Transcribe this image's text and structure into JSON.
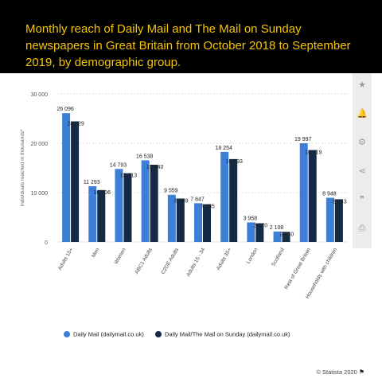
{
  "header": {
    "title": "Monthly reach of Daily Mail and The Mail on Sunday newspapers in Great Britain from October 2018 to September 2019, by demographic group."
  },
  "sidebar": {
    "icons": [
      "star-icon",
      "bell-icon",
      "gear-icon",
      "share-icon",
      "quote-icon",
      "print-icon"
    ],
    "glyphs": [
      "★",
      "🔔",
      "⚙",
      "⋖",
      "❞",
      "⎙"
    ]
  },
  "chart_data": {
    "type": "bar",
    "categories": [
      "Adults 15+",
      "Men",
      "Women",
      "ABC1 Adults",
      "C2DE Adults",
      "Adults 15 - 34",
      "Adults 35+",
      "London",
      "Scotland",
      "Rest of Great Britain",
      "Households with children"
    ],
    "series": [
      {
        "name": "Daily Mail (dailymail.co.uk)",
        "color": "#3d7fd6",
        "values": [
          26096,
          11293,
          14793,
          16538,
          9559,
          7847,
          18254,
          3958,
          2108,
          19997,
          8948
        ],
        "labels": [
          "26 096",
          "11 293",
          "14 793",
          "16 538",
          "9 559",
          "7 847",
          "18 254",
          "3 958",
          "2 108",
          "19 997",
          "8 948"
        ]
      },
      {
        "name": "Daily Mail/The Mail on Sunday (dailymail.co.uk)",
        "color": "#152a45",
        "values": [
          24429,
          10506,
          13913,
          15640,
          8789,
          7635,
          16793,
          3770,
          2040,
          18619,
          8643
        ],
        "labels": [
          "24 429",
          "10 506",
          "13 913",
          "15 640",
          "8 789",
          "7 635",
          "16 793",
          "3 770",
          "2 040",
          "18 619",
          "8 643"
        ]
      }
    ],
    "ylabel": "Individuals reached in thousands*",
    "ylim": [
      0,
      30000
    ],
    "yticks": [
      0,
      10000,
      20000,
      30000
    ],
    "ytick_labels": [
      "0",
      "10 000",
      "20 000",
      "30 000"
    ],
    "grid": true,
    "legend_position": "bottom"
  },
  "footer": {
    "source": "© Statista 2020"
  }
}
